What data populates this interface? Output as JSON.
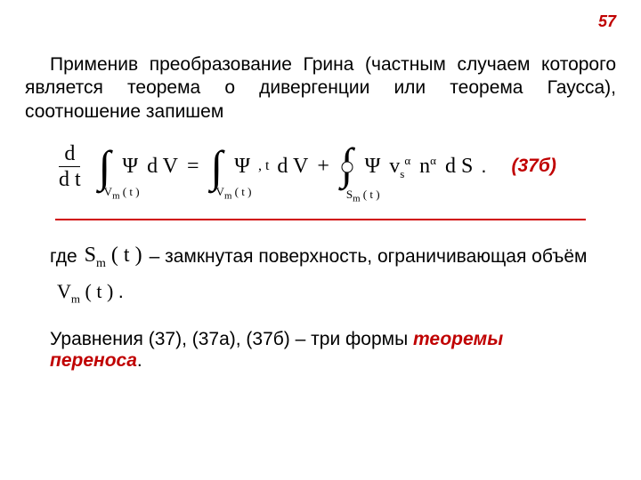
{
  "page_number": "57",
  "page_number_color": "#c00000",
  "paragraph": "Применив преобразование Грина (частным случаем которого является теорема о дивергенции или теорема Гаусса), соотношение запишем",
  "formula": {
    "frac_num": "d",
    "frac_den": "d t",
    "int1_sub": "V",
    "int1_sub2": "m",
    "int1_arg": "( t )",
    "psi": "Ψ",
    "dV": "d V",
    "eq": "=",
    "plus": "+",
    "comma_t": ", t",
    "v_sym": "v",
    "n_sym": "n",
    "alpha": "α",
    "s_sub": "s",
    "dS": "d S",
    "S_cap": "S",
    "label": "(37б)",
    "label_color": "#c00000"
  },
  "where_prefix": "где",
  "where_Sm": "S",
  "where_m": "m",
  "where_arg": "( t )",
  "where_text": "– замкнутая поверхность, ограничивающая объём",
  "vm": {
    "V": "V",
    "m": "m",
    "arg": "( t )",
    "dot": "."
  },
  "final_prefix": "Уравнения (37), (37а), (37б) – три формы ",
  "final_theorem": "теоремы переноса",
  "final_dot": ".",
  "theorem_color": "#c00000",
  "line_color": "#d00000"
}
